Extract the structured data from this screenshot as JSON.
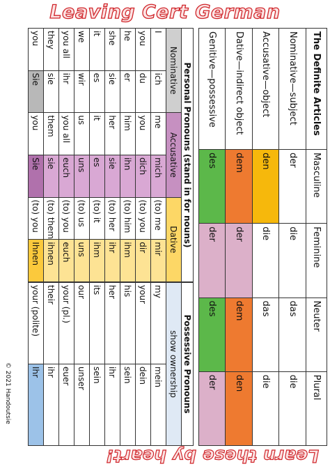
{
  "header": {
    "title": "Leaving Cert German",
    "footer": "Learn these by heart!",
    "copyright": "© 2021 Handoutsie"
  },
  "articles": {
    "title": "The Definite Articles",
    "columns": [
      "Masculine",
      "Feminine",
      "Neuter",
      "Plural"
    ],
    "rows": [
      {
        "label": "Nominative—subject",
        "cells": [
          "der",
          "die",
          "das",
          "die"
        ]
      },
      {
        "label": "Accusative—object",
        "cells": [
          "den",
          "die",
          "das",
          "die"
        ]
      },
      {
        "label": "Dative—indirect object",
        "cells": [
          "dem",
          "der",
          "dem",
          "den"
        ]
      },
      {
        "label": "Genitive—possessive",
        "cells": [
          "des",
          "der",
          "des",
          "der"
        ]
      }
    ]
  },
  "personal": {
    "title": "Personal Pronouns (stand in for nouns)",
    "columns": [
      "Nominative",
      "Accusative",
      "Dative"
    ],
    "rows": [
      [
        "I",
        "ich",
        "me",
        "mich",
        "(to) me",
        "mir"
      ],
      [
        "you",
        "du",
        "you",
        "dich",
        "(to) you",
        "dir"
      ],
      [
        "he",
        "er",
        "him",
        "ihn",
        "(to) him",
        "ihm"
      ],
      [
        "she",
        "sie",
        "her",
        "sie",
        "(to) her",
        "ihr"
      ],
      [
        "it",
        "es",
        "it",
        "es",
        "(to) it",
        "ihm"
      ],
      [
        "we",
        "wir",
        "us",
        "uns",
        "(to) us",
        "uns"
      ],
      [
        "you all",
        "ihr",
        "you all",
        "euch",
        "(to) you",
        "euch"
      ],
      [
        "they",
        "sie",
        "them",
        "sie",
        "(to) them",
        "ihnen"
      ],
      [
        "you",
        "Sie",
        "you",
        "Sie",
        "(to) you",
        "Ihnen"
      ]
    ]
  },
  "possessive": {
    "title": "Possessive Pronouns",
    "subtitle": "show ownership",
    "rows": [
      [
        "my",
        "mein"
      ],
      [
        "your",
        "dein"
      ],
      [
        "his",
        "sein"
      ],
      [
        "her",
        "ihr"
      ],
      [
        "its",
        "sein"
      ],
      [
        "our",
        "unser"
      ],
      [
        "your (pl.)",
        "euer"
      ],
      [
        "their",
        "ihr"
      ],
      [
        "your (polite)",
        "Ihr"
      ]
    ]
  }
}
